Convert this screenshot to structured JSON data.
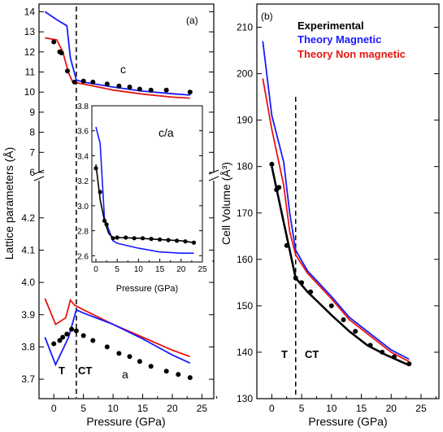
{
  "colors": {
    "experimental": "#000000",
    "theory_magnetic": "#1a1aff",
    "theory_non_magnetic": "#e8150f"
  },
  "chart_data": [
    {
      "panel_label": "(a)",
      "type": "line",
      "xlabel": "Pressure (GPa)",
      "ylabel": "Lattice parameters (Å)",
      "x_ticks": [
        "0",
        "5",
        "10",
        "15",
        "20",
        "25"
      ],
      "upper_y_ticks": [
        "6",
        "7",
        "8",
        "9",
        "10",
        "11",
        "12",
        "13",
        "14"
      ],
      "lower_y_ticks": [
        "3.7",
        "3.8",
        "3.9",
        "4.0",
        "4.1",
        "4.2"
      ],
      "xlim": [
        -2.5,
        27
      ],
      "upper_ylim": [
        6,
        14.3
      ],
      "lower_ylim": [
        3.67,
        4.27
      ],
      "transition_x": 3.8,
      "annotations": {
        "c": "c",
        "a": "a",
        "T": "T",
        "CT": "CT"
      },
      "c": {
        "experimental": {
          "x": [
            0,
            1,
            1.3,
            2.3,
            3.5,
            5,
            6.6,
            9,
            11,
            12.8,
            14.5,
            16.4,
            19,
            23
          ],
          "y": [
            12.5,
            12.0,
            11.95,
            11.05,
            10.5,
            10.55,
            10.5,
            10.4,
            10.3,
            10.25,
            10.15,
            10.1,
            10.1,
            10.0
          ]
        },
        "theory_magnetic": {
          "x": [
            -1.5,
            0.5,
            2.2,
            2.8,
            3.8,
            5,
            10,
            15,
            20,
            23
          ],
          "y": [
            14.0,
            13.6,
            13.3,
            11.7,
            10.6,
            10.5,
            10.25,
            10.05,
            9.92,
            9.85
          ]
        },
        "theory_non_magnetic": {
          "x": [
            -1.5,
            0.5,
            1.5,
            2.5,
            3.2,
            5,
            10,
            15,
            20,
            23
          ],
          "y": [
            12.7,
            12.6,
            12.0,
            10.95,
            10.5,
            10.4,
            10.1,
            9.9,
            9.75,
            9.7
          ]
        }
      },
      "a": {
        "experimental": {
          "x": [
            0,
            1,
            1.5,
            2.2,
            3,
            3.8,
            5,
            6.6,
            9,
            11,
            12.8,
            14.5,
            16.4,
            19,
            21,
            23
          ],
          "y": [
            3.81,
            3.82,
            3.83,
            3.84,
            3.855,
            3.85,
            3.835,
            3.82,
            3.8,
            3.78,
            3.77,
            3.755,
            3.74,
            3.725,
            3.715,
            3.705
          ]
        },
        "theory_magnetic": {
          "x": [
            -1.5,
            0.3,
            2.5,
            3.8,
            5,
            10,
            15,
            20,
            23
          ],
          "y": [
            3.83,
            3.745,
            3.83,
            3.915,
            3.905,
            3.87,
            3.825,
            3.775,
            3.75
          ]
        },
        "theory_non_magnetic": {
          "x": [
            -1.5,
            0.3,
            2,
            2.8,
            3.5,
            5,
            10,
            15,
            20,
            23
          ],
          "y": [
            3.95,
            3.87,
            3.89,
            3.945,
            3.93,
            3.915,
            3.87,
            3.83,
            3.79,
            3.77
          ]
        }
      },
      "inset": {
        "label": "c/a",
        "xlabel": "Pressure (GPa)",
        "xlim": [
          0,
          25
        ],
        "ylim": [
          2.55,
          3.8
        ],
        "x_ticks": [
          "0",
          "5",
          "10",
          "15",
          "20",
          "25"
        ],
        "y_ticks": [
          "2.6",
          "2.8",
          "3.0",
          "3.2",
          "3.4",
          "3.6",
          "3.8"
        ],
        "experimental": {
          "x": [
            0,
            1,
            2,
            2.5,
            4,
            5,
            7,
            9,
            11,
            13,
            15,
            17,
            19,
            21,
            23
          ],
          "y": [
            3.3,
            3.11,
            2.88,
            2.85,
            2.74,
            2.745,
            2.745,
            2.74,
            2.74,
            2.735,
            2.73,
            2.725,
            2.72,
            2.715,
            2.705
          ]
        },
        "theory_magnetic": {
          "x": [
            0,
            1,
            2,
            4,
            5,
            10,
            15,
            20,
            23
          ],
          "y": [
            3.63,
            3.5,
            2.9,
            2.72,
            2.7,
            2.66,
            2.63,
            2.62,
            2.62
          ]
        },
        "experimental_fit": {
          "x": [
            0,
            1,
            2,
            3,
            4,
            5,
            10,
            15,
            20,
            23
          ],
          "y": [
            3.33,
            3.05,
            2.88,
            2.78,
            2.74,
            2.745,
            2.74,
            2.73,
            2.72,
            2.705
          ]
        }
      }
    },
    {
      "panel_label": "(b)",
      "type": "line",
      "xlabel": "Pressure (GPa)",
      "ylabel": "Cell Volume (Å³)",
      "x_ticks": [
        "0",
        "5",
        "10",
        "15",
        "20",
        "25"
      ],
      "y_ticks": [
        "130",
        "140",
        "150",
        "160",
        "170",
        "180",
        "190",
        "200",
        "210"
      ],
      "xlim": [
        -2.5,
        28
      ],
      "ylim": [
        130,
        215
      ],
      "transition_x": 4.0,
      "annotations": {
        "T": "T",
        "CT": "CT"
      },
      "legend": [
        "Experimental",
        "Theory Magnetic",
        "Theory Non magnetic"
      ],
      "legend_position": "top",
      "experimental": {
        "x": [
          0,
          0.8,
          1.2,
          2.5,
          4,
          5,
          6.5,
          10,
          12,
          14,
          16.5,
          18.5,
          20.5,
          23
        ],
        "y": [
          180.5,
          175,
          175.5,
          163,
          156,
          155,
          153,
          150,
          147,
          144.5,
          141.5,
          140,
          139,
          137.5
        ]
      },
      "experimental_fit": {
        "x": [
          0,
          1,
          2,
          3,
          4,
          6,
          8,
          10,
          13,
          16,
          19,
          23
        ],
        "y": [
          180,
          174,
          168,
          162,
          156,
          153,
          150.5,
          148,
          144.5,
          141.5,
          139.5,
          137.2
        ]
      },
      "theory_magnetic": {
        "x": [
          -1.5,
          0,
          2,
          3,
          4,
          6,
          10,
          13,
          17,
          20,
          23
        ],
        "y": [
          207,
          191,
          181,
          170,
          162,
          157.5,
          152,
          147.5,
          143.5,
          140.5,
          138.5
        ]
      },
      "theory_non_magnetic": {
        "x": [
          -1.5,
          0,
          2,
          3,
          4,
          6,
          10,
          13,
          17,
          20,
          23
        ],
        "y": [
          199,
          188,
          176,
          166,
          161,
          157,
          151.5,
          147,
          143,
          140,
          138
        ]
      }
    }
  ]
}
